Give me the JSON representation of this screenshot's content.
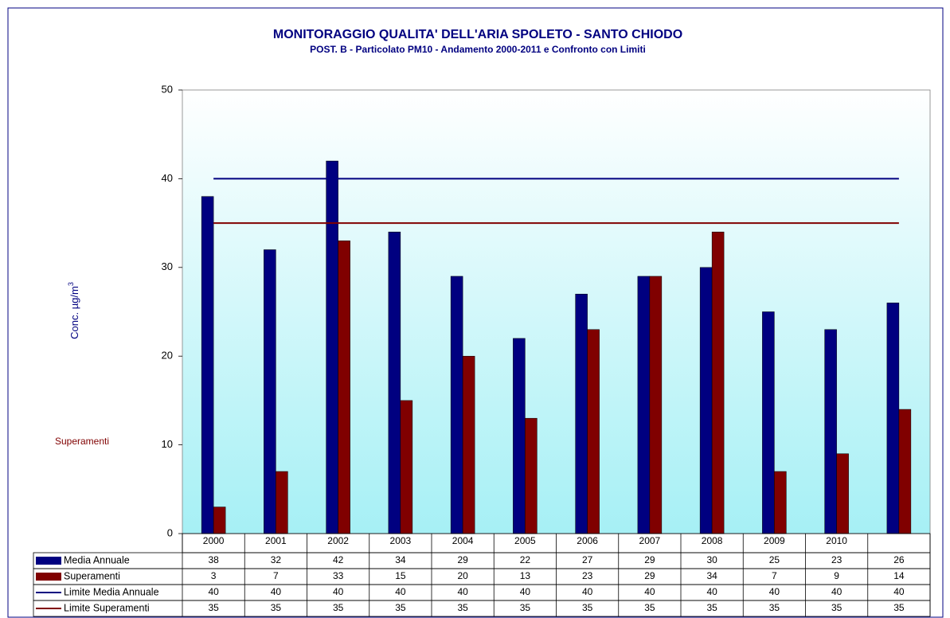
{
  "chart_data": {
    "type": "bar",
    "title": "MONITORAGGIO QUALITA' DELL'ARIA  SPOLETO - SANTO CHIODO",
    "subtitle": "POST. B - Particolato PM10 - Andamento 2000-2011 e Confronto con Limiti",
    "y_label": [
      "Conc. µg/m",
      "3"
    ],
    "annotation": "Superamenti",
    "categories": [
      "2000",
      "2001",
      "2002",
      "2003",
      "2004",
      "2005",
      "2006",
      "2007",
      "2008",
      "2009",
      "2010",
      null
    ],
    "series": [
      {
        "name": "Media Annuale",
        "type": "bar",
        "color": "#000080",
        "values": [
          38,
          32,
          42,
          34,
          29,
          22,
          27,
          29,
          30,
          25,
          23,
          26
        ]
      },
      {
        "name": "Superamenti",
        "type": "bar",
        "color": "#800000",
        "values": [
          3,
          7,
          33,
          15,
          20,
          13,
          23,
          29,
          34,
          7,
          9,
          14
        ]
      },
      {
        "name": "Limite Media Annuale",
        "type": "line",
        "color": "#000080",
        "values": [
          40,
          40,
          40,
          40,
          40,
          40,
          40,
          40,
          40,
          40,
          40,
          40
        ]
      },
      {
        "name": "Limite Superamenti",
        "type": "line",
        "color": "#800000",
        "values": [
          35,
          35,
          35,
          35,
          35,
          35,
          35,
          35,
          35,
          35,
          35,
          35
        ]
      }
    ],
    "ylim": [
      0,
      50
    ],
    "yticks": [
      0,
      10,
      20,
      30,
      40,
      50
    ],
    "grid": false
  }
}
